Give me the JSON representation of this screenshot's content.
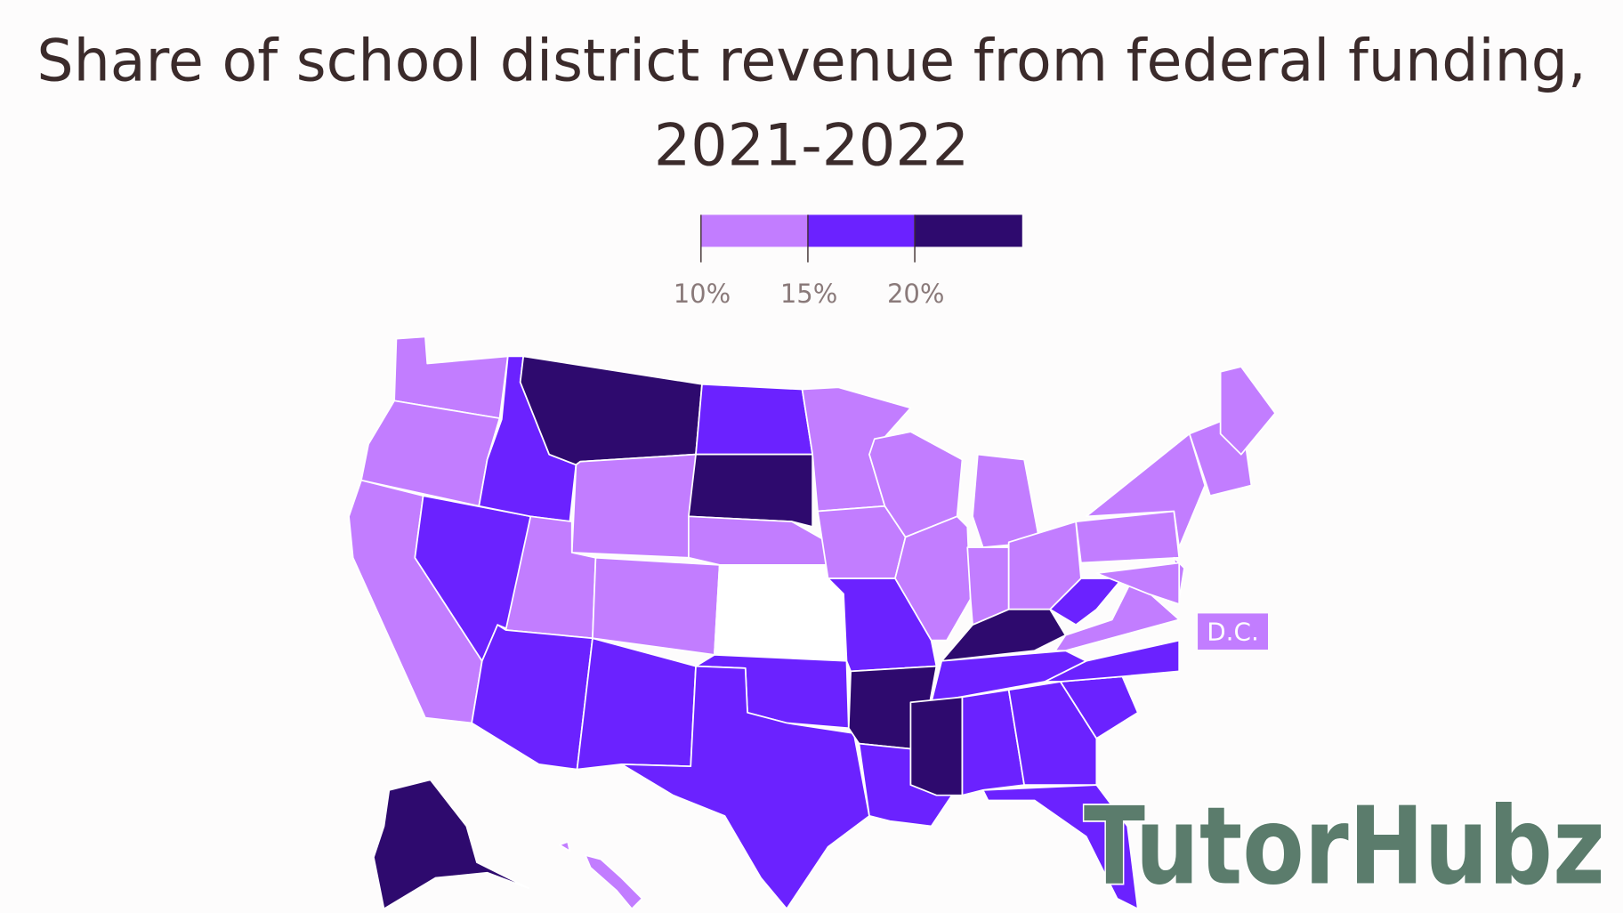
{
  "title_lines": [
    "Share of school district revenue from federal funding,",
    "2021-2022"
  ],
  "legend": {
    "colors": [
      "#c27dff",
      "#6b22ff",
      "#2e0a6e"
    ],
    "ticks": [
      {
        "value": 10,
        "label": "10%"
      },
      {
        "value": 15,
        "label": "15%"
      },
      {
        "value": 20,
        "label": "20%"
      }
    ]
  },
  "map": {
    "state_colors": [
      "#c27dff",
      "#c27dff",
      "#c27dff",
      "#6b22ff",
      "#6b22ff",
      "#2e0a6e",
      "#c27dff",
      "#c27dff",
      "#c27dff",
      "#6b22ff",
      "#6b22ff",
      "#6b22ff",
      "#2e0a6e",
      "#c27dff",
      "#ffffff",
      "#6b22ff",
      "#6b22ff",
      "#c27dff",
      "#c27dff",
      "#6b22ff",
      "#2e0a6e",
      "#6b22ff",
      "#c27dff",
      "#c27dff",
      "#c27dff",
      "#c27dff",
      "#c27dff",
      "#2e0a6e",
      "#6b22ff",
      "#2e0a6e",
      "#6b22ff",
      "#6b22ff",
      "#6b22ff",
      "#6b22ff",
      "#6b22ff",
      "#c27dff",
      "#6b22ff",
      "#c27dff",
      "#c27dff",
      "#c27dff",
      "#c27dff",
      "#c27dff",
      "#c27dff",
      "#2e0a6e",
      "#c27dff",
      "#c27dff"
    ],
    "dc_label": "D.C.",
    "dc_color": "#c27dff"
  },
  "watermark": "TutorHubz"
}
